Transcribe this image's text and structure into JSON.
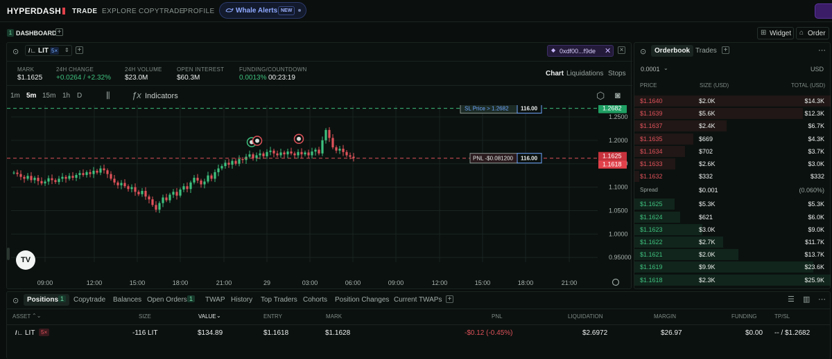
{
  "topnav": {
    "logo": "HYPERDASH",
    "items": [
      "TRADE",
      "EXPLORE",
      "COPYTRADE",
      "PROFILE"
    ],
    "whale_alerts": {
      "label": "Whale Alerts",
      "badge": "NEW"
    }
  },
  "dashboard": {
    "index": "1",
    "label": "DASHBOARD",
    "widget_label": "Widget",
    "order_label": "Order"
  },
  "market": {
    "symbol": "LIT",
    "leverage": "5×",
    "wallet": "0xdf00...f9de",
    "stats": [
      {
        "label": "MARK",
        "value": "$1.1625"
      },
      {
        "label": "24H CHANGE",
        "value": "+0.0264 / +2.32%"
      },
      {
        "label": "24H VOLUME",
        "value": "$23.0M"
      },
      {
        "label": "OPEN INTEREST",
        "value": "$60.3M"
      },
      {
        "label": "FUNDING/COUNTDOWN",
        "value": "0.0013%",
        "value2": "00:23:19"
      }
    ],
    "view_tabs": [
      "Chart",
      "Liquidations",
      "Stops"
    ]
  },
  "chart_toolbar": {
    "intervals": [
      "1m",
      "5m",
      "15m",
      "1h",
      "D"
    ],
    "active_interval": "5m",
    "indicators_label": "Indicators"
  },
  "chart_data": {
    "type": "candlestick",
    "x_ticks": [
      "09:00",
      "12:00",
      "15:00",
      "18:00",
      "21:00",
      "29",
      "03:00",
      "06:00",
      "09:00",
      "12:00",
      "15:00",
      "18:00",
      "21:00"
    ],
    "y_ticks": [
      "1.2500",
      "1.2000",
      "1.1500",
      "1.1000",
      "1.0500",
      "1.0000",
      "0.95000"
    ],
    "ylim": [
      0.94,
      1.275
    ],
    "close_series": [
      1.131,
      1.128,
      1.122,
      1.118,
      1.124,
      1.115,
      1.12,
      1.113,
      1.108,
      1.112,
      1.119,
      1.115,
      1.111,
      1.118,
      1.122,
      1.118,
      1.124,
      1.12,
      1.126,
      1.13,
      1.126,
      1.132,
      1.128,
      1.135,
      1.131,
      1.14,
      1.136,
      1.128,
      1.118,
      1.11,
      1.104,
      1.109,
      1.102,
      1.096,
      1.1,
      1.09,
      1.085,
      1.092,
      1.08,
      1.074,
      1.062,
      1.052,
      1.066,
      1.078,
      1.072,
      1.084,
      1.09,
      1.082,
      1.095,
      1.102,
      1.096,
      1.11,
      1.12,
      1.114,
      1.106,
      1.112,
      1.125,
      1.118,
      1.132,
      1.14,
      1.145,
      1.152,
      1.148,
      1.156,
      1.15,
      1.16,
      1.158,
      1.165,
      1.17,
      1.162,
      1.168,
      1.172,
      1.166,
      1.175,
      1.178,
      1.172,
      1.168,
      1.174,
      1.17,
      1.176,
      1.172,
      1.168,
      1.175,
      1.17,
      1.174,
      1.168,
      1.176,
      1.18,
      1.172,
      1.2,
      1.222,
      1.205,
      1.185,
      1.178,
      1.182,
      1.175,
      1.168,
      1.165,
      1.162
    ],
    "sl_price": 1.2682,
    "sl_label": "SL Price > 1.2682",
    "sl_size": "116.00",
    "entry_price": 1.1618,
    "pnl_label": "PNL -$0.081200",
    "pnl_size": "116.00",
    "mark_label": "1.1625",
    "entry_label": "1.1618",
    "sl_tag": "1.2682"
  },
  "orderbook": {
    "tabs": [
      "Orderbook",
      "Trades"
    ],
    "tick": "0.0001",
    "currency": "USD",
    "headers": [
      "PRICE",
      "SIZE (USD)",
      "TOTAL (USD)"
    ],
    "asks": [
      {
        "price": "$1.1640",
        "size": "$2.0K",
        "total": "$14.3K"
      },
      {
        "price": "$1.1639",
        "size": "$5.6K",
        "total": "$12.3K"
      },
      {
        "price": "$1.1637",
        "size": "$2.4K",
        "total": "$6.7K"
      },
      {
        "price": "$1.1635",
        "size": "$669",
        "total": "$4.3K"
      },
      {
        "price": "$1.1634",
        "size": "$702",
        "total": "$3.7K"
      },
      {
        "price": "$1.1633",
        "size": "$2.6K",
        "total": "$3.0K"
      },
      {
        "price": "$1.1632",
        "size": "$332",
        "total": "$332"
      }
    ],
    "spread": {
      "label": "Spread",
      "value": "$0.001",
      "pct": "(0.060%)"
    },
    "bids": [
      {
        "price": "$1.1625",
        "size": "$5.3K",
        "total": "$5.3K"
      },
      {
        "price": "$1.1624",
        "size": "$621",
        "total": "$6.0K"
      },
      {
        "price": "$1.1623",
        "size": "$3.0K",
        "total": "$9.0K"
      },
      {
        "price": "$1.1622",
        "size": "$2.7K",
        "total": "$11.7K"
      },
      {
        "price": "$1.1621",
        "size": "$2.0K",
        "total": "$13.7K"
      },
      {
        "price": "$1.1619",
        "size": "$9.9K",
        "total": "$23.6K"
      },
      {
        "price": "$1.1618",
        "size": "$2.3K",
        "total": "$25.9K"
      }
    ]
  },
  "bottom": {
    "tabs": [
      "Positions",
      "Copytrade",
      "Balances",
      "Open Orders",
      "TWAP",
      "History",
      "Top Traders",
      "Cohorts",
      "Position Changes",
      "Current TWAPs"
    ],
    "positions_count": "1",
    "open_orders_count": "1",
    "headers": [
      "ASSET",
      "SIZE",
      "VALUE",
      "ENTRY",
      "MARK",
      "PNL",
      "LIQUIDATION",
      "MARGIN",
      "FUNDING",
      "TP/SL"
    ],
    "row": {
      "asset": "LIT",
      "lev": "5×",
      "size": "-116 LIT",
      "value": "$134.89",
      "entry": "$1.1618",
      "mark": "$1.1628",
      "pnl": "-$0.12 (-0.45%)",
      "liquidation": "$2.6972",
      "margin": "$26.97",
      "funding": "$0.00",
      "tpsl": "-- / $1.2682"
    }
  }
}
